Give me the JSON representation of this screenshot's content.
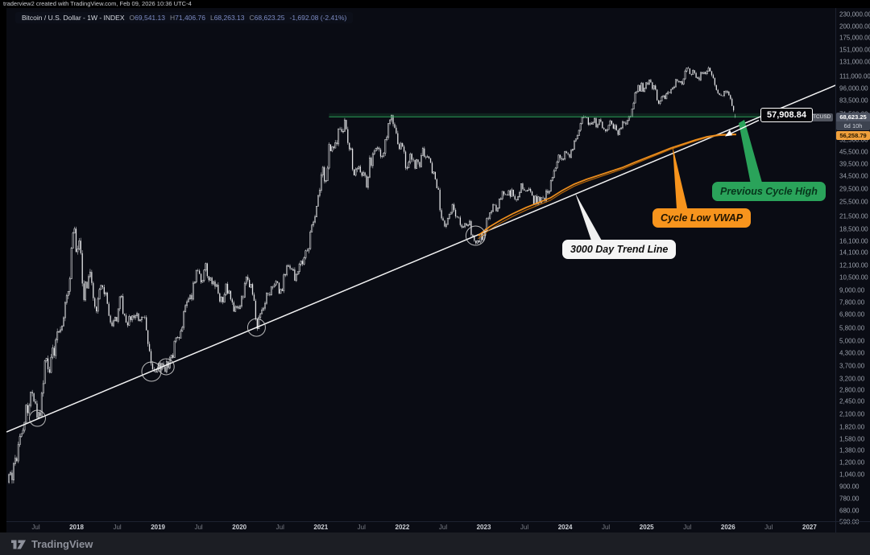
{
  "watermark": "traderview2 created with TradingView.com, Feb 09, 2026 10:36 UTC-4",
  "legend": {
    "symbol_title": "Bitcoin / U.S. Dollar - 1W - INDEX",
    "ohlc": [
      {
        "k": "O",
        "v": "69,541.13"
      },
      {
        "k": "H",
        "v": "71,406.76"
      },
      {
        "k": "L",
        "v": "68,263.13"
      },
      {
        "k": "C",
        "v": "68,623.25"
      }
    ],
    "change": "-1,692.08 (-2.41%)"
  },
  "price_scale": {
    "ticker": "BTCUSD",
    "last_price": "68,623.25",
    "countdown": "6d 10h",
    "vwap_value": "56,258.79"
  },
  "footer": {
    "brand": "TradingView"
  },
  "colors": {
    "background": "#0a0c14",
    "candle": "#e9eaec",
    "trend_line": "#ffffff",
    "prev_cycle_high": "#2aa35a",
    "cycle_low_vwap": "#f7941d",
    "legend_values": "#7d8cc4"
  },
  "chart_data": {
    "type": "candlestick",
    "title": "Bitcoin / U.S. Dollar - 1W - INDEX",
    "scale": "log",
    "grid": "off",
    "x_axis": {
      "labels": [
        {
          "label": "Jul",
          "t": 2017.5,
          "minor": true
        },
        {
          "label": "2018",
          "t": 2018
        },
        {
          "label": "Jul",
          "t": 2018.5,
          "minor": true
        },
        {
          "label": "2019",
          "t": 2019
        },
        {
          "label": "Jul",
          "t": 2019.5,
          "minor": true
        },
        {
          "label": "2020",
          "t": 2020
        },
        {
          "label": "Jul",
          "t": 2020.5,
          "minor": true
        },
        {
          "label": "2021",
          "t": 2021
        },
        {
          "label": "Jul",
          "t": 2021.5,
          "minor": true
        },
        {
          "label": "2022",
          "t": 2022
        },
        {
          "label": "Jul",
          "t": 2022.5,
          "minor": true
        },
        {
          "label": "2023",
          "t": 2023
        },
        {
          "label": "Jul",
          "t": 2023.5,
          "minor": true
        },
        {
          "label": "2024",
          "t": 2024
        },
        {
          "label": "Jul",
          "t": 2024.5,
          "minor": true
        },
        {
          "label": "2025",
          "t": 2025
        },
        {
          "label": "Jul",
          "t": 2025.5,
          "minor": true
        },
        {
          "label": "2026",
          "t": 2026
        },
        {
          "label": "Jul",
          "t": 2026.5,
          "minor": true
        },
        {
          "label": "2027",
          "t": 2027
        }
      ]
    },
    "y_axis": {
      "labels": [
        "230,000.00",
        "200,000.00",
        "175,000.00",
        "151,000.00",
        "131,000.00",
        "111,000.00",
        "96,000.00",
        "83,500.00",
        "71,500.00",
        "52,500.00",
        "45,500.00",
        "39,500.00",
        "34,500.00",
        "29,500.00",
        "25,500.00",
        "21,500.00",
        "18,500.00",
        "16,100.00",
        "14,100.00",
        "12,100.00",
        "10,500.00",
        "9,000.00",
        "7,800.00",
        "6,800.00",
        "5,800.00",
        "5,000.00",
        "4,300.00",
        "3,700.00",
        "3,200.00",
        "2,800.00",
        "2,450.00",
        "2,100.00",
        "1,820.00",
        "1,580.00",
        "1,380.00",
        "1,200.00",
        "1,040.00",
        "900.00",
        "780.00",
        "680.00",
        "598.00"
      ]
    },
    "series_anchors": [
      [
        2017.17,
        950
      ],
      [
        2017.25,
        1180
      ],
      [
        2017.33,
        1750
      ],
      [
        2017.42,
        2550
      ],
      [
        2017.49,
        2450
      ],
      [
        2017.54,
        1950
      ],
      [
        2017.58,
        2750
      ],
      [
        2017.62,
        4100
      ],
      [
        2017.67,
        3600
      ],
      [
        2017.71,
        4350
      ],
      [
        2017.79,
        5700
      ],
      [
        2017.83,
        6500
      ],
      [
        2017.88,
        8000
      ],
      [
        2017.92,
        11500
      ],
      [
        2017.95,
        16500
      ],
      [
        2017.97,
        19200
      ],
      [
        2018.0,
        13800
      ],
      [
        2018.04,
        15500
      ],
      [
        2018.08,
        8300
      ],
      [
        2018.13,
        10200
      ],
      [
        2018.17,
        11000
      ],
      [
        2018.21,
        8300
      ],
      [
        2018.25,
        7000
      ],
      [
        2018.29,
        9200
      ],
      [
        2018.33,
        9300
      ],
      [
        2018.38,
        7500
      ],
      [
        2018.42,
        6500
      ],
      [
        2018.46,
        6200
      ],
      [
        2018.5,
        6700
      ],
      [
        2018.54,
        8200
      ],
      [
        2018.58,
        7000
      ],
      [
        2018.63,
        6300
      ],
      [
        2018.67,
        6500
      ],
      [
        2018.71,
        6600
      ],
      [
        2018.75,
        6500
      ],
      [
        2018.79,
        6350
      ],
      [
        2018.83,
        6400
      ],
      [
        2018.86,
        5600
      ],
      [
        2018.88,
        4300
      ],
      [
        2018.92,
        4000
      ],
      [
        2018.96,
        3300
      ],
      [
        2019.0,
        3800
      ],
      [
        2019.04,
        3550
      ],
      [
        2019.08,
        3650
      ],
      [
        2019.13,
        3900
      ],
      [
        2019.17,
        4000
      ],
      [
        2019.21,
        5200
      ],
      [
        2019.25,
        5150
      ],
      [
        2019.29,
        5700
      ],
      [
        2019.33,
        7200
      ],
      [
        2019.38,
        8000
      ],
      [
        2019.42,
        8700
      ],
      [
        2019.46,
        10800
      ],
      [
        2019.48,
        12200
      ],
      [
        2019.5,
        11000
      ],
      [
        2019.54,
        10200
      ],
      [
        2019.58,
        11800
      ],
      [
        2019.63,
        10000
      ],
      [
        2019.67,
        10300
      ],
      [
        2019.71,
        9600
      ],
      [
        2019.75,
        8200
      ],
      [
        2019.79,
        8000
      ],
      [
        2019.83,
        9200
      ],
      [
        2019.88,
        8500
      ],
      [
        2019.92,
        7300
      ],
      [
        2019.96,
        7200
      ],
      [
        2020.0,
        7200
      ],
      [
        2020.04,
        8300
      ],
      [
        2020.08,
        9900
      ],
      [
        2020.13,
        10000
      ],
      [
        2020.15,
        9100
      ],
      [
        2020.18,
        8000
      ],
      [
        2020.21,
        5800
      ],
      [
        2020.23,
        6200
      ],
      [
        2020.27,
        6700
      ],
      [
        2020.31,
        7500
      ],
      [
        2020.35,
        8800
      ],
      [
        2020.4,
        9000
      ],
      [
        2020.44,
        9600
      ],
      [
        2020.48,
        9200
      ],
      [
        2020.52,
        9150
      ],
      [
        2020.56,
        11000
      ],
      [
        2020.6,
        11700
      ],
      [
        2020.65,
        11500
      ],
      [
        2020.69,
        10400
      ],
      [
        2020.73,
        11500
      ],
      [
        2020.77,
        13000
      ],
      [
        2020.81,
        13500
      ],
      [
        2020.85,
        15500
      ],
      [
        2020.88,
        18500
      ],
      [
        2020.92,
        19200
      ],
      [
        2020.96,
        26500
      ],
      [
        2021.0,
        33000
      ],
      [
        2021.02,
        38000
      ],
      [
        2021.06,
        32000
      ],
      [
        2021.1,
        47000
      ],
      [
        2021.13,
        48000
      ],
      [
        2021.17,
        46000
      ],
      [
        2021.21,
        57500
      ],
      [
        2021.25,
        58500
      ],
      [
        2021.29,
        63500
      ],
      [
        2021.31,
        58000
      ],
      [
        2021.35,
        50000
      ],
      [
        2021.38,
        42000
      ],
      [
        2021.4,
        35000
      ],
      [
        2021.44,
        37500
      ],
      [
        2021.48,
        35600
      ],
      [
        2021.52,
        33500
      ],
      [
        2021.56,
        32200
      ],
      [
        2021.6,
        39800
      ],
      [
        2021.63,
        42500
      ],
      [
        2021.67,
        48800
      ],
      [
        2021.71,
        47000
      ],
      [
        2021.73,
        43000
      ],
      [
        2021.77,
        48000
      ],
      [
        2021.81,
        57000
      ],
      [
        2021.83,
        61500
      ],
      [
        2021.85,
        64500
      ],
      [
        2021.87,
        65500
      ],
      [
        2021.9,
        59000
      ],
      [
        2021.92,
        57500
      ],
      [
        2021.96,
        50000
      ],
      [
        2022.0,
        47500
      ],
      [
        2022.02,
        43000
      ],
      [
        2022.06,
        38500
      ],
      [
        2022.1,
        42500
      ],
      [
        2022.15,
        40000
      ],
      [
        2022.19,
        39000
      ],
      [
        2022.23,
        42500
      ],
      [
        2022.27,
        46500
      ],
      [
        2022.31,
        42000
      ],
      [
        2022.35,
        39500
      ],
      [
        2022.38,
        36000
      ],
      [
        2022.42,
        30500
      ],
      [
        2022.44,
        29500
      ],
      [
        2022.46,
        24500
      ],
      [
        2022.48,
        20500
      ],
      [
        2022.52,
        19200
      ],
      [
        2022.56,
        21500
      ],
      [
        2022.6,
        23200
      ],
      [
        2022.63,
        24000
      ],
      [
        2022.67,
        21500
      ],
      [
        2022.71,
        20000
      ],
      [
        2022.75,
        19500
      ],
      [
        2022.79,
        19200
      ],
      [
        2022.83,
        20500
      ],
      [
        2022.85,
        16500
      ],
      [
        2022.88,
        16300
      ],
      [
        2022.92,
        16500
      ],
      [
        2022.96,
        16800
      ],
      [
        2023.0,
        16600
      ],
      [
        2023.04,
        21000
      ],
      [
        2023.08,
        22800
      ],
      [
        2023.13,
        24500
      ],
      [
        2023.15,
        22000
      ],
      [
        2023.19,
        25000
      ],
      [
        2023.23,
        28000
      ],
      [
        2023.27,
        28400
      ],
      [
        2023.31,
        28000
      ],
      [
        2023.35,
        29200
      ],
      [
        2023.38,
        27000
      ],
      [
        2023.42,
        26500
      ],
      [
        2023.46,
        30500
      ],
      [
        2023.5,
        30300
      ],
      [
        2023.54,
        30000
      ],
      [
        2023.58,
        29200
      ],
      [
        2023.6,
        26000
      ],
      [
        2023.65,
        26100
      ],
      [
        2023.69,
        25900
      ],
      [
        2023.73,
        26500
      ],
      [
        2023.77,
        28000
      ],
      [
        2023.81,
        29900
      ],
      [
        2023.85,
        34500
      ],
      [
        2023.88,
        37300
      ],
      [
        2023.92,
        43800
      ],
      [
        2023.96,
        42000
      ],
      [
        2024.0,
        44000
      ],
      [
        2024.04,
        42800
      ],
      [
        2024.08,
        47800
      ],
      [
        2024.13,
        52000
      ],
      [
        2024.15,
        57000
      ],
      [
        2024.19,
        62500
      ],
      [
        2024.21,
        68300
      ],
      [
        2024.23,
        69000
      ],
      [
        2024.25,
        67200
      ],
      [
        2024.29,
        64000
      ],
      [
        2024.31,
        61000
      ],
      [
        2024.35,
        67000
      ],
      [
        2024.38,
        63800
      ],
      [
        2024.42,
        67000
      ],
      [
        2024.46,
        61000
      ],
      [
        2024.5,
        57500
      ],
      [
        2024.52,
        63800
      ],
      [
        2024.56,
        68000
      ],
      [
        2024.58,
        59500
      ],
      [
        2024.63,
        61000
      ],
      [
        2024.65,
        58000
      ],
      [
        2024.69,
        63000
      ],
      [
        2024.71,
        65800
      ],
      [
        2024.75,
        62500
      ],
      [
        2024.77,
        66000
      ],
      [
        2024.81,
        69000
      ],
      [
        2024.83,
        76500
      ],
      [
        2024.85,
        90500
      ],
      [
        2024.88,
        97500
      ],
      [
        2024.92,
        95000
      ],
      [
        2024.94,
        104000
      ],
      [
        2024.96,
        94500
      ],
      [
        2025.0,
        102000
      ],
      [
        2025.04,
        104500
      ],
      [
        2025.06,
        97000
      ],
      [
        2025.1,
        96500
      ],
      [
        2025.13,
        84000
      ],
      [
        2025.17,
        83500
      ],
      [
        2025.19,
        86000
      ],
      [
        2025.23,
        85000
      ],
      [
        2025.27,
        93500
      ],
      [
        2025.31,
        94500
      ],
      [
        2025.35,
        104000
      ],
      [
        2025.38,
        106500
      ],
      [
        2025.42,
        103500
      ],
      [
        2025.46,
        108000
      ],
      [
        2025.48,
        117000
      ],
      [
        2025.52,
        119500
      ],
      [
        2025.56,
        115000
      ],
      [
        2025.6,
        113500
      ],
      [
        2025.63,
        108500
      ],
      [
        2025.67,
        112500
      ],
      [
        2025.71,
        114500
      ],
      [
        2025.73,
        118000
      ],
      [
        2025.75,
        122500
      ],
      [
        2025.77,
        124800
      ],
      [
        2025.79,
        111000
      ],
      [
        2025.83,
        106000
      ],
      [
        2025.85,
        98000
      ],
      [
        2025.88,
        91500
      ],
      [
        2025.9,
        87000
      ],
      [
        2025.94,
        93500
      ],
      [
        2025.96,
        90500
      ],
      [
        2026.0,
        94500
      ],
      [
        2026.02,
        89000
      ],
      [
        2026.04,
        83000
      ],
      [
        2026.06,
        78000
      ],
      [
        2026.08,
        72500
      ],
      [
        2026.105,
        68623
      ]
    ],
    "last_candle": {
      "o": 69541.13,
      "h": 71406.76,
      "l": 68263.13,
      "c": 68623.25
    },
    "annotations": {
      "trend_line": {
        "label": "3000 Day Trend Line",
        "t1": 2017.14,
        "p1": 1712,
        "t2": 2027.32,
        "p2": 100000
      },
      "trend_value_label": "57,908.84",
      "prev_cycle_high": {
        "label": "Previous Cycle High",
        "price": 69000,
        "t1": 2021.1,
        "t2": 2026.48
      },
      "cycle_low_vwap": {
        "label": "Cycle Low VWAP",
        "points": [
          [
            2022.93,
            17122
          ],
          [
            2023.07,
            19000
          ],
          [
            2023.22,
            20684
          ],
          [
            2023.37,
            22307
          ],
          [
            2023.52,
            23820
          ],
          [
            2023.67,
            25213
          ],
          [
            2023.82,
            26684
          ],
          [
            2023.96,
            29040
          ],
          [
            2024.11,
            31325
          ],
          [
            2024.26,
            33148
          ],
          [
            2024.41,
            34752
          ],
          [
            2024.56,
            36443
          ],
          [
            2024.71,
            38205
          ],
          [
            2024.85,
            40420
          ],
          [
            2025.0,
            42777
          ],
          [
            2025.15,
            45258
          ],
          [
            2025.3,
            47888
          ],
          [
            2025.45,
            50222
          ],
          [
            2025.6,
            52655
          ],
          [
            2025.74,
            54671
          ],
          [
            2025.89,
            55900
          ],
          [
            2026.02,
            56150
          ],
          [
            2026.1,
            56258
          ]
        ]
      },
      "touch_circles": [
        [
          2017.52,
          2010,
          10
        ],
        [
          2018.92,
          3475,
          12
        ],
        [
          2019.1,
          3679,
          10
        ],
        [
          2020.21,
          5834,
          11
        ],
        [
          2022.9,
          17122,
          12
        ]
      ]
    }
  }
}
